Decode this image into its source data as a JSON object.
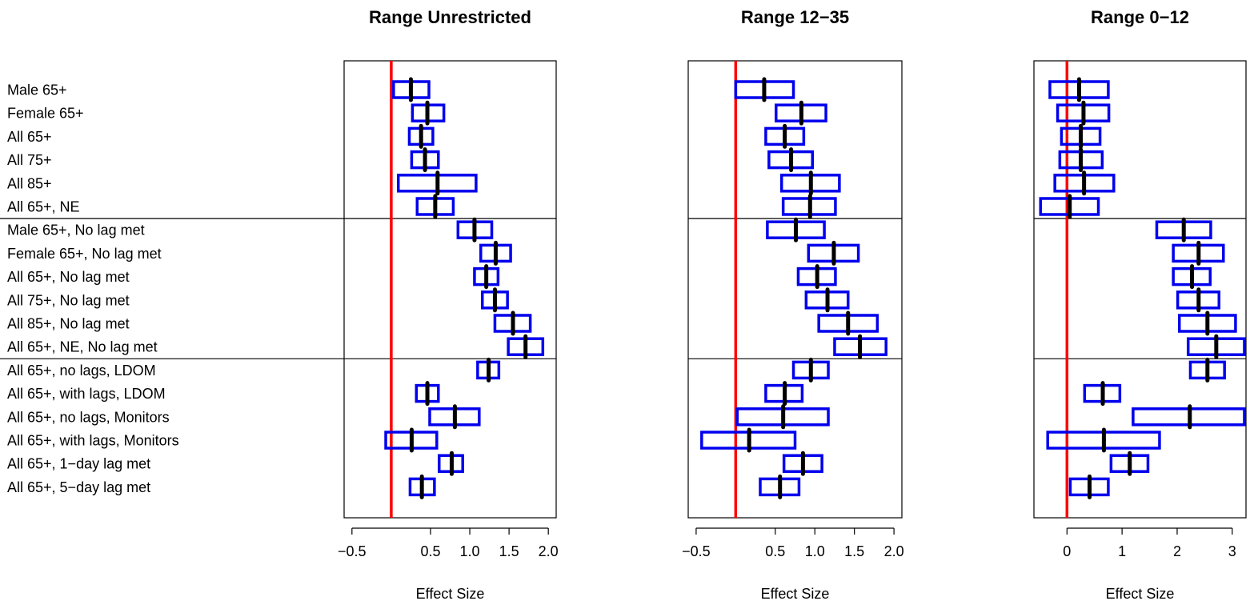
{
  "row_labels": [
    "Male 65+",
    "Female 65+",
    "All 65+",
    "All  75+",
    "All  85+",
    "All 65+, NE",
    "Male 65+, No lag met",
    "Female 65+, No lag met",
    "All 65+, No lag met",
    "All  75+, No lag met",
    "All  85+, No lag met",
    "All 65+, NE, No lag met",
    "All 65+, no lags, LDOM",
    "All 65+, with lags, LDOM",
    "All 65+, no lags, Monitors",
    "All 65+, with lags, Monitors",
    "All 65+, 1−day lag met",
    "All 65+, 5−day lag met"
  ],
  "colors": {
    "box": "#0000ee",
    "median": "#000000",
    "reference_line": "#ff0000",
    "frame": "#000000"
  },
  "chart_data": [
    {
      "type": "boxplot",
      "title": "Range Unrestricted",
      "xlabel": "Effect Size",
      "xlim": [
        -0.6,
        2.1
      ],
      "xticks": [
        -0.5,
        0.5,
        1.0,
        1.5,
        2.0
      ],
      "xtick_labels": [
        "−0.5",
        "0.5",
        "1.0",
        "1.5",
        "2.0"
      ],
      "reference_line": 0,
      "group_breaks_after": [
        6,
        12
      ],
      "rows": [
        {
          "low": 0.03,
          "mid": 0.25,
          "high": 0.48
        },
        {
          "low": 0.27,
          "mid": 0.46,
          "high": 0.67
        },
        {
          "low": 0.23,
          "mid": 0.38,
          "high": 0.53
        },
        {
          "low": 0.26,
          "mid": 0.43,
          "high": 0.6
        },
        {
          "low": 0.09,
          "mid": 0.59,
          "high": 1.08
        },
        {
          "low": 0.33,
          "mid": 0.56,
          "high": 0.79
        },
        {
          "low": 0.85,
          "mid": 1.06,
          "high": 1.28
        },
        {
          "low": 1.14,
          "mid": 1.33,
          "high": 1.52
        },
        {
          "low": 1.06,
          "mid": 1.21,
          "high": 1.36
        },
        {
          "low": 1.16,
          "mid": 1.32,
          "high": 1.48
        },
        {
          "low": 1.32,
          "mid": 1.55,
          "high": 1.77
        },
        {
          "low": 1.49,
          "mid": 1.71,
          "high": 1.93
        },
        {
          "low": 1.1,
          "mid": 1.24,
          "high": 1.37
        },
        {
          "low": 0.32,
          "mid": 0.46,
          "high": 0.6
        },
        {
          "low": 0.49,
          "mid": 0.81,
          "high": 1.12
        },
        {
          "low": -0.07,
          "mid": 0.26,
          "high": 0.58
        },
        {
          "low": 0.61,
          "mid": 0.77,
          "high": 0.91
        },
        {
          "low": 0.24,
          "mid": 0.39,
          "high": 0.55
        }
      ]
    },
    {
      "type": "boxplot",
      "title": "Range 12−35",
      "xlabel": "Effect Size",
      "xlim": [
        -0.6,
        2.1
      ],
      "xticks": [
        -0.5,
        0.5,
        1.0,
        1.5,
        2.0
      ],
      "xtick_labels": [
        "−0.5",
        "0.5",
        "1.0",
        "1.5",
        "2.0"
      ],
      "reference_line": 0,
      "group_breaks_after": [
        6,
        12
      ],
      "rows": [
        {
          "low": 0.0,
          "mid": 0.36,
          "high": 0.73
        },
        {
          "low": 0.51,
          "mid": 0.83,
          "high": 1.14
        },
        {
          "low": 0.38,
          "mid": 0.62,
          "high": 0.86
        },
        {
          "low": 0.42,
          "mid": 0.7,
          "high": 0.97
        },
        {
          "low": 0.58,
          "mid": 0.95,
          "high": 1.31
        },
        {
          "low": 0.6,
          "mid": 0.94,
          "high": 1.26
        },
        {
          "low": 0.4,
          "mid": 0.76,
          "high": 1.12
        },
        {
          "low": 0.92,
          "mid": 1.24,
          "high": 1.55
        },
        {
          "low": 0.79,
          "mid": 1.03,
          "high": 1.26
        },
        {
          "low": 0.89,
          "mid": 1.16,
          "high": 1.42
        },
        {
          "low": 1.05,
          "mid": 1.42,
          "high": 1.79
        },
        {
          "low": 1.25,
          "mid": 1.57,
          "high": 1.9
        },
        {
          "low": 0.73,
          "mid": 0.95,
          "high": 1.17
        },
        {
          "low": 0.38,
          "mid": 0.62,
          "high": 0.84
        },
        {
          "low": 0.02,
          "mid": 0.6,
          "high": 1.17
        },
        {
          "low": -0.43,
          "mid": 0.17,
          "high": 0.75
        },
        {
          "low": 0.61,
          "mid": 0.85,
          "high": 1.09
        },
        {
          "low": 0.31,
          "mid": 0.56,
          "high": 0.8
        }
      ]
    },
    {
      "type": "boxplot",
      "title": "Range 0−12",
      "xlabel": "Effect Size",
      "xlim": [
        -0.6,
        3.25
      ],
      "xticks": [
        0,
        1,
        2,
        3
      ],
      "xtick_labels": [
        "0",
        "1",
        "2",
        "3"
      ],
      "reference_line": 0,
      "group_breaks_after": [
        6,
        12
      ],
      "rows": [
        {
          "low": -0.31,
          "mid": 0.22,
          "high": 0.75
        },
        {
          "low": -0.17,
          "mid": 0.3,
          "high": 0.76
        },
        {
          "low": -0.1,
          "mid": 0.25,
          "high": 0.6
        },
        {
          "low": -0.13,
          "mid": 0.25,
          "high": 0.64
        },
        {
          "low": -0.22,
          "mid": 0.31,
          "high": 0.85
        },
        {
          "low": -0.48,
          "mid": 0.05,
          "high": 0.57
        },
        {
          "low": 1.63,
          "mid": 2.12,
          "high": 2.61
        },
        {
          "low": 1.93,
          "mid": 2.39,
          "high": 2.84
        },
        {
          "low": 1.93,
          "mid": 2.27,
          "high": 2.6
        },
        {
          "low": 2.01,
          "mid": 2.39,
          "high": 2.76
        },
        {
          "low": 2.04,
          "mid": 2.55,
          "high": 3.06
        },
        {
          "low": 2.2,
          "mid": 2.71,
          "high": 3.22
        },
        {
          "low": 2.24,
          "mid": 2.55,
          "high": 2.86
        },
        {
          "low": 0.32,
          "mid": 0.65,
          "high": 0.96
        },
        {
          "low": 1.2,
          "mid": 2.23,
          "high": 3.22
        },
        {
          "low": -0.35,
          "mid": 0.67,
          "high": 1.68
        },
        {
          "low": 0.8,
          "mid": 1.14,
          "high": 1.47
        },
        {
          "low": 0.06,
          "mid": 0.41,
          "high": 0.75
        }
      ]
    }
  ]
}
